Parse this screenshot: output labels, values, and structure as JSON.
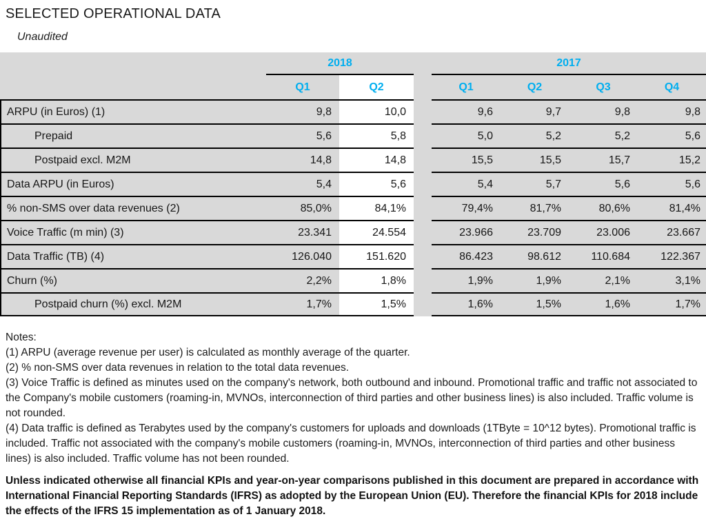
{
  "colors": {
    "accent": "#00AEEF",
    "table_bg": "#D9D9D9",
    "highlight_bg": "#FFFFFF",
    "border": "#000000"
  },
  "page": {
    "title": "SELECTED OPERATIONAL DATA",
    "subtitle": "Unaudited"
  },
  "table": {
    "year_groups": [
      {
        "label": "2018",
        "quarters": [
          "Q1",
          "Q2"
        ]
      },
      {
        "label": "2017",
        "quarters": [
          "Q1",
          "Q2",
          "Q3",
          "Q4"
        ]
      }
    ],
    "highlighted_column": "2018 Q2",
    "rows": [
      {
        "label": "ARPU (in Euros) (1)",
        "y2018": [
          "9,8",
          "10,0"
        ],
        "y2017": [
          "9,6",
          "9,7",
          "9,8",
          "9,8"
        ]
      },
      {
        "label": "Prepaid",
        "y2018": [
          "5,6",
          "5,8"
        ],
        "y2017": [
          "5,0",
          "5,2",
          "5,2",
          "5,6"
        ]
      },
      {
        "label": "Postpaid excl. M2M",
        "y2018": [
          "14,8",
          "14,8"
        ],
        "y2017": [
          "15,5",
          "15,5",
          "15,7",
          "15,2"
        ]
      },
      {
        "label": "Data ARPU (in Euros)",
        "y2018": [
          "5,4",
          "5,6"
        ],
        "y2017": [
          "5,4",
          "5,7",
          "5,6",
          "5,6"
        ]
      },
      {
        "label": "% non-SMS over data revenues (2)",
        "y2018": [
          "85,0%",
          "84,1%"
        ],
        "y2017": [
          "79,4%",
          "81,7%",
          "80,6%",
          "81,4%"
        ]
      },
      {
        "label": "Voice Traffic (m min) (3)",
        "y2018": [
          "23.341",
          "24.554"
        ],
        "y2017": [
          "23.966",
          "23.709",
          "23.006",
          "23.667"
        ]
      },
      {
        "label": "Data Traffic (TB) (4)",
        "y2018": [
          "126.040",
          "151.620"
        ],
        "y2017": [
          "86.423",
          "98.612",
          "110.684",
          "122.367"
        ]
      },
      {
        "label": "Churn (%)",
        "y2018": [
          "2,2%",
          "1,8%"
        ],
        "y2017": [
          "1,9%",
          "1,9%",
          "2,1%",
          "3,1%"
        ]
      },
      {
        "label": "Postpaid churn (%) excl. M2M",
        "y2018": [
          "1,7%",
          "1,5%"
        ],
        "y2017": [
          "1,6%",
          "1,5%",
          "1,6%",
          "1,7%"
        ]
      }
    ]
  },
  "notes": {
    "heading": "Notes:",
    "items": [
      "(1) ARPU (average revenue per user) is calculated as monthly average of the quarter.",
      "(2) % non-SMS over data revenues in relation to the total data revenues.",
      "(3) Voice Traffic is defined as minutes used on the company's network, both outbound and inbound. Promotional traffic and traffic not associated to the Company's mobile customers (roaming-in, MVNOs, interconnection of third parties and other business lines) is also included. Traffic volume is not rounded.",
      "(4) Data traffic is defined as Terabytes used by the company's customers for uploads and downloads (1TByte = 10^12 bytes). Promotional traffic is included. Traffic not associated with the company's mobile customers (roaming-in, MVNOs, interconnection of third parties and other business lines) is also included. Traffic volume has not been rounded."
    ],
    "disclaimer": "Unless indicated otherwise all financial KPIs and year-on-year comparisons published in this document are prepared in accordance with International Financial Reporting Standards (IFRS) as adopted by the European Union (EU). Therefore the financial KPIs for 2018 include the effects of the IFRS 15 implementation as of 1 January 2018."
  }
}
